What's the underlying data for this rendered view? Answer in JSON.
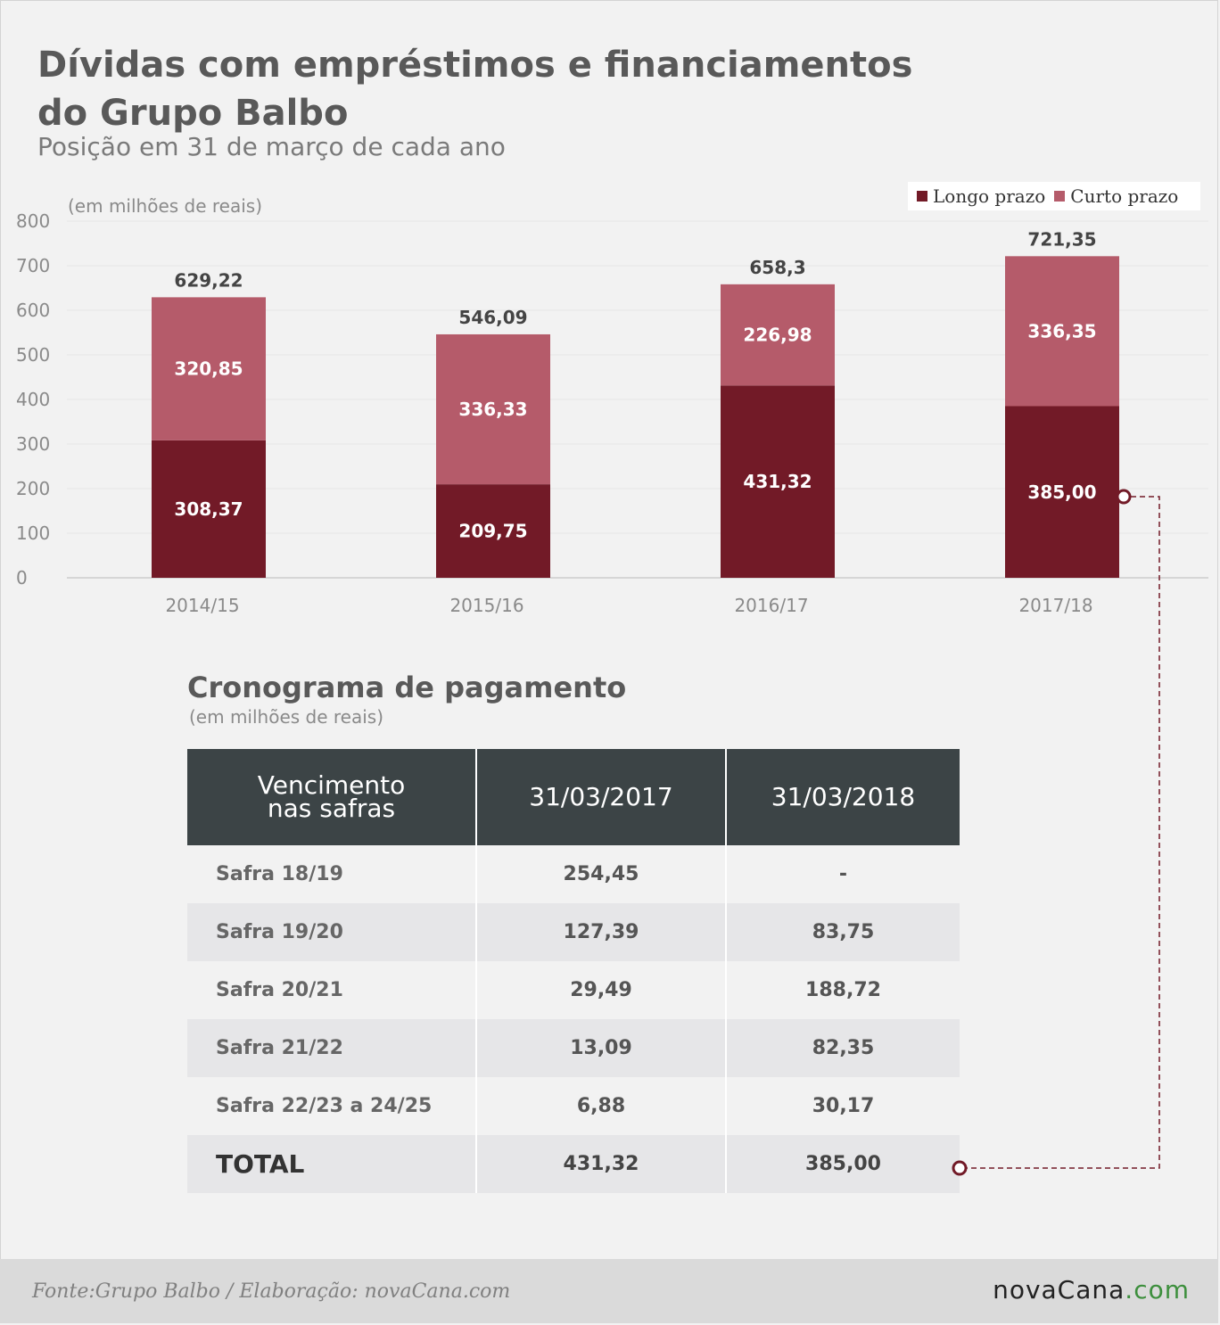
{
  "title_line1": "Dívidas com empréstimos e financiamentos",
  "title_line2": "do Grupo Balbo",
  "subtitle": "Posição em 31 de março de cada ano",
  "legend": {
    "long": "Longo prazo",
    "short": "Curto prazo"
  },
  "colors": {
    "long": "#721a27",
    "short": "#b55b6a",
    "axis_text": "#8a8a8a",
    "header_bg": "#3c4446"
  },
  "chart_data": {
    "type": "bar",
    "stacked": true,
    "unit_label": "(em milhões de reais)",
    "categories": [
      "2014/15",
      "2015/16",
      "2016/17",
      "2017/18"
    ],
    "series": [
      {
        "name": "Longo prazo",
        "values": [
          308.37,
          209.75,
          431.32,
          385.0
        ],
        "labels": [
          "308,37",
          "209,75",
          "431,32",
          "385,00"
        ]
      },
      {
        "name": "Curto prazo",
        "values": [
          320.85,
          336.33,
          226.98,
          336.35
        ],
        "labels": [
          "320,85",
          "336,33",
          "226,98",
          "336,35"
        ]
      }
    ],
    "totals": [
      629.22,
      546.09,
      658.3,
      721.35
    ],
    "total_labels": [
      "629,22",
      "546,09",
      "658,3",
      "721,35"
    ],
    "ylim": [
      0,
      800
    ],
    "yticks": [
      0,
      100,
      200,
      300,
      400,
      500,
      600,
      700,
      800
    ],
    "grid": true,
    "legend_position": "top-right"
  },
  "schedule": {
    "title": "Cronograma de pagamento",
    "unit": "(em milhões de reais)",
    "header_line1": "Vencimento",
    "header_line2": "nas safras",
    "col1": "31/03/2017",
    "col2": "31/03/2018",
    "rows": [
      {
        "label": "Safra 18/19",
        "v1": "254,45",
        "v2": "-"
      },
      {
        "label": "Safra 19/20",
        "v1": "127,39",
        "v2": "83,75"
      },
      {
        "label": "Safra 20/21",
        "v1": "29,49",
        "v2": "188,72"
      },
      {
        "label": "Safra 21/22",
        "v1": "13,09",
        "v2": "82,35"
      },
      {
        "label": "Safra 22/23 a 24/25",
        "v1": "6,88",
        "v2": "30,17"
      }
    ],
    "total": {
      "label": "TOTAL",
      "v1": "431,32",
      "v2": "385,00"
    }
  },
  "footer": {
    "source": "Fonte:Grupo Balbo / Elaboração: novaCana.com",
    "logo_main": "novaCana",
    "logo_accent": ".com"
  }
}
